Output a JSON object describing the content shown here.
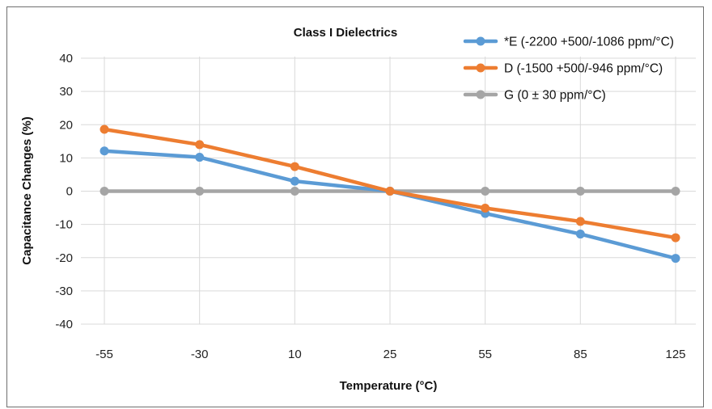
{
  "chart_data": {
    "type": "line",
    "title": "Class  I  Dielectrics",
    "xlabel": "Temperature (°C)",
    "ylabel": "Capacitance Changes (%)",
    "categories": [
      "-55",
      "-30",
      "10",
      "25",
      "55",
      "85",
      "125"
    ],
    "ylim": [
      -40,
      40
    ],
    "yticks": [
      40,
      30,
      20,
      10,
      0,
      -10,
      -20,
      -30,
      -40
    ],
    "grid": "vertical",
    "legend_position": "top-right",
    "series": [
      {
        "name": "*E (-2200 +500/-1086 ppm/°C)",
        "color": "#5b9bd5",
        "values": [
          12.1,
          10.2,
          3.0,
          0,
          -6.7,
          -12.9,
          -20.2
        ]
      },
      {
        "name": "D (-1500 +500/-946 ppm/°C)",
        "color": "#ed7d31",
        "values": [
          18.6,
          14.0,
          7.4,
          0,
          -5.1,
          -9.1,
          -14.0
        ]
      },
      {
        "name": "G (0 ± 30 ppm/°C)",
        "color": "#a5a5a5",
        "values": [
          0,
          0,
          0,
          0,
          0,
          0,
          0
        ]
      }
    ]
  }
}
